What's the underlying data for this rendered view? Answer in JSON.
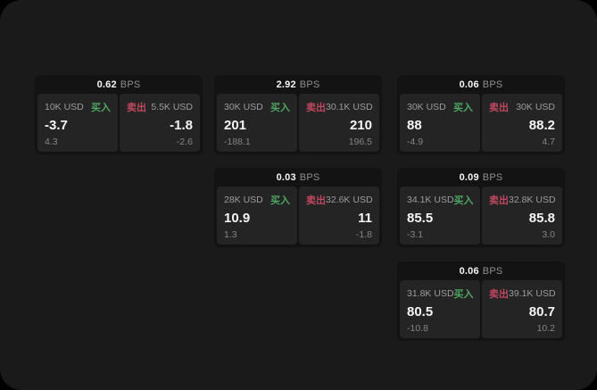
{
  "labels": {
    "buy": "买入",
    "sell": "卖出",
    "bps_unit": "BPS"
  },
  "colors": {
    "outer_bg": "#000000",
    "window_bg": "#1a1a1a",
    "card_bg": "#131313",
    "panel_bg": "#242424",
    "buy_green": "#4fa562",
    "sell_red": "#bf4860",
    "primary_text": "#f5f5f5",
    "muted_text": "#9c9c9c"
  },
  "cards": [
    {
      "bps": "0.62",
      "buy": {
        "size": "10K USD",
        "value": "-3.7",
        "sub": "4.3"
      },
      "sell": {
        "size": "5.5K USD",
        "value": "-1.8",
        "sub": "-2.6"
      }
    },
    {
      "bps": "2.92",
      "buy": {
        "size": "30K USD",
        "value": "201",
        "sub": "-188.1"
      },
      "sell": {
        "size": "30.1K USD",
        "value": "210",
        "sub": "196.5"
      }
    },
    {
      "bps": "0.06",
      "buy": {
        "size": "30K USD",
        "value": "88",
        "sub": "-4.9"
      },
      "sell": {
        "size": "30K USD",
        "value": "88.2",
        "sub": "4.7"
      }
    },
    {
      "bps": "0.03",
      "buy": {
        "size": "28K USD",
        "value": "10.9",
        "sub": "1.3"
      },
      "sell": {
        "size": "32.6K USD",
        "value": "11",
        "sub": "-1.8"
      }
    },
    {
      "bps": "0.09",
      "buy": {
        "size": "34.1K USD",
        "value": "85.5",
        "sub": "-3.1"
      },
      "sell": {
        "size": "32.8K USD",
        "value": "85.8",
        "sub": "3.0"
      }
    },
    {
      "bps": "0.06",
      "buy": {
        "size": "31.8K USD",
        "value": "80.5",
        "sub": "-10.8"
      },
      "sell": {
        "size": "39.1K USD",
        "value": "80.7",
        "sub": "10.2"
      }
    }
  ]
}
